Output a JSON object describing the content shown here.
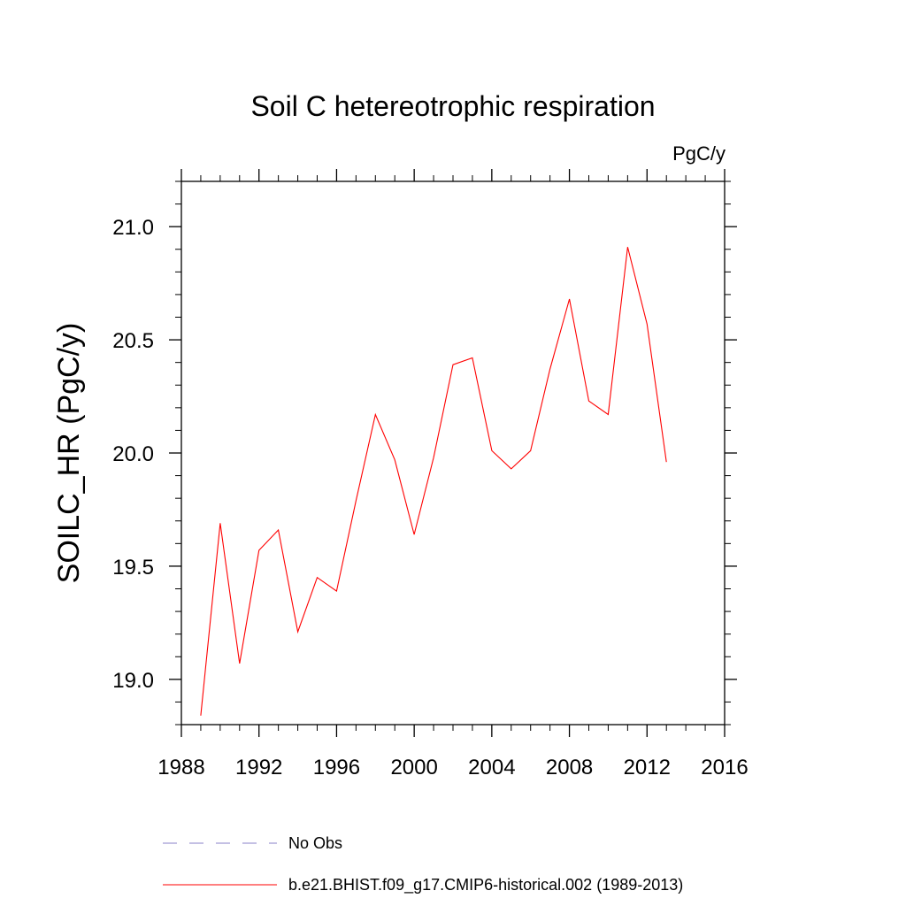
{
  "chart_data": {
    "type": "line",
    "title": "Soil C hetereotrophic respiration",
    "units_label": "PgC/y",
    "ylabel": "SOILC_HR  (PgC/y)",
    "xlabel": "",
    "xlim": [
      1988,
      2016
    ],
    "ylim": [
      18.8,
      21.2
    ],
    "x_ticks": [
      1988,
      1992,
      1996,
      2000,
      2004,
      2008,
      2012,
      2016
    ],
    "x_tick_labels": [
      "1988",
      "1992",
      "1996",
      "2000",
      "2004",
      "2008",
      "2012",
      "2016"
    ],
    "y_ticks": [
      19.0,
      19.5,
      20.0,
      20.5,
      21.0
    ],
    "y_tick_labels": [
      "19.0",
      "19.5",
      "20.0",
      "20.5",
      "21.0"
    ],
    "grid": false,
    "legend_position": "bottom",
    "series": [
      {
        "name": "b.e21.BHIST.f09_g17.CMIP6-historical.002 (1989-2013)",
        "color": "#ff0000",
        "style": "solid",
        "x": [
          1989,
          1990,
          1991,
          1992,
          1993,
          1994,
          1995,
          1996,
          1997,
          1998,
          1999,
          2000,
          2001,
          2002,
          2003,
          2004,
          2005,
          2006,
          2007,
          2008,
          2009,
          2010,
          2011,
          2012,
          2013
        ],
        "y": [
          18.84,
          19.69,
          19.07,
          19.57,
          19.66,
          19.21,
          19.45,
          19.39,
          19.79,
          20.17,
          19.97,
          19.64,
          19.98,
          20.39,
          20.42,
          20.01,
          19.93,
          20.01,
          20.37,
          20.68,
          20.23,
          20.17,
          20.91,
          20.57,
          19.96
        ]
      },
      {
        "name": "No Obs",
        "color": "#8a80c8",
        "style": "dashed",
        "x": [],
        "y": []
      }
    ]
  }
}
